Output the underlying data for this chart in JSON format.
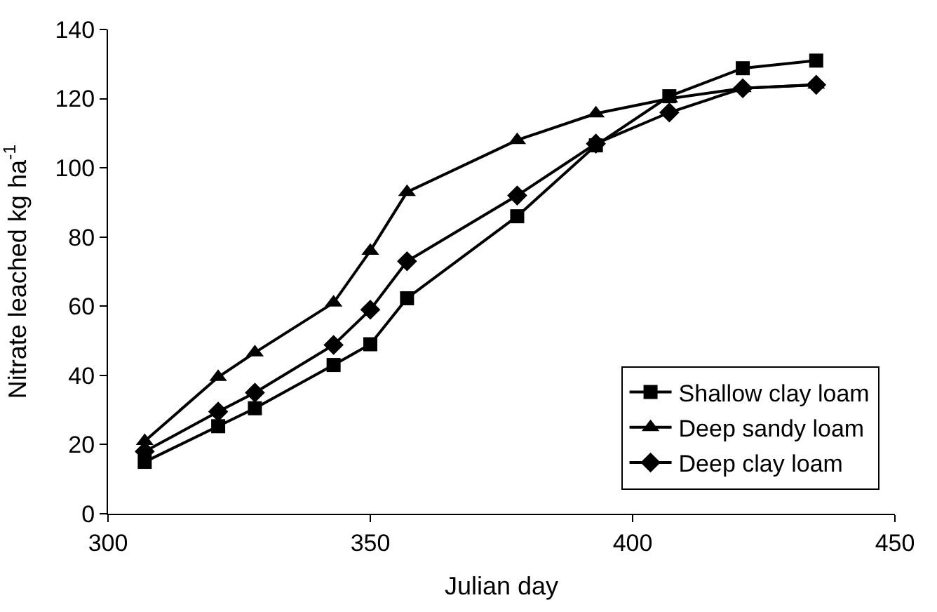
{
  "chart_data": {
    "type": "line",
    "xlabel": "Julian day",
    "ylabel": "Nitrate leached kg ha$^{-1}$",
    "xlim": [
      300,
      450
    ],
    "xticks": [
      300,
      350,
      400,
      450
    ],
    "ylim": [
      0,
      140
    ],
    "yticks": [
      0,
      20,
      40,
      60,
      80,
      100,
      120,
      140
    ],
    "legend": "bottom right",
    "line_style": "solid",
    "x": [
      307,
      321,
      328,
      343,
      350,
      357,
      378,
      393,
      407,
      421,
      435
    ],
    "series": [
      {
        "name": "Shallow clay loam",
        "color": "#000000",
        "marker": "square",
        "values": [
          15,
          25.3,
          30.5,
          43,
          49,
          62.3,
          86,
          106.5,
          120.7,
          128.8,
          131
        ]
      },
      {
        "name": "Deep sandy loam",
        "color": "#000000",
        "marker": "triangle",
        "values": [
          21,
          39.5,
          46.6,
          61,
          76,
          93,
          108,
          115.7,
          120,
          123,
          124
        ]
      },
      {
        "name": "Deep clay loam",
        "color": "#000000",
        "marker": "diamond",
        "values": [
          18,
          29.5,
          35,
          48.8,
          59,
          73,
          92,
          107,
          116,
          123,
          124
        ]
      }
    ]
  }
}
